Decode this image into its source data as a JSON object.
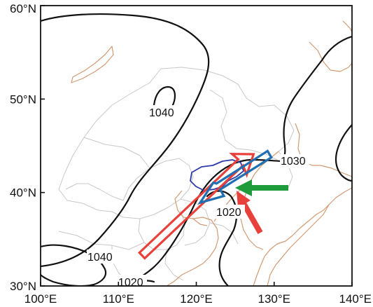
{
  "axes": {
    "y_ticks": [
      {
        "value": 30,
        "label": "30°N"
      },
      {
        "value": 40,
        "label": "40°N"
      },
      {
        "value": 50,
        "label": "50°N"
      },
      {
        "value": 60,
        "label": "60°N"
      }
    ],
    "x_ticks": [
      {
        "value": 100,
        "label": "100°E"
      },
      {
        "value": 110,
        "label": "110°E"
      },
      {
        "value": 120,
        "label": "120°E"
      },
      {
        "value": 130,
        "label": "130°E"
      },
      {
        "value": 140,
        "label": "140°E"
      }
    ],
    "lon_range": [
      100,
      140
    ],
    "lat_range": [
      30,
      60
    ]
  },
  "contour_labels": {
    "north_high": "1040",
    "southwest_high": "1040",
    "east": "1030",
    "center": "1020",
    "south": "1020"
  },
  "colors": {
    "isobar": "#111111",
    "coastline": "#d29a72",
    "borders": "#c8c8c8",
    "red_arrow": "#e8413c",
    "blue_arrow": "#1f6fb2",
    "green_arrow": "#1e9b3a",
    "region_outline": "#2b3aa8"
  },
  "arrows": [
    {
      "name": "red-hollow-arrow",
      "style": "hollow",
      "color": "red",
      "direction": "northeast"
    },
    {
      "name": "blue-hollow-arrow",
      "style": "hollow",
      "color": "blue",
      "direction": "southwest"
    },
    {
      "name": "green-arrow",
      "style": "solid",
      "color": "green",
      "direction": "west"
    },
    {
      "name": "red-solid-arrow",
      "style": "solid",
      "color": "red",
      "direction": "northwest"
    }
  ]
}
